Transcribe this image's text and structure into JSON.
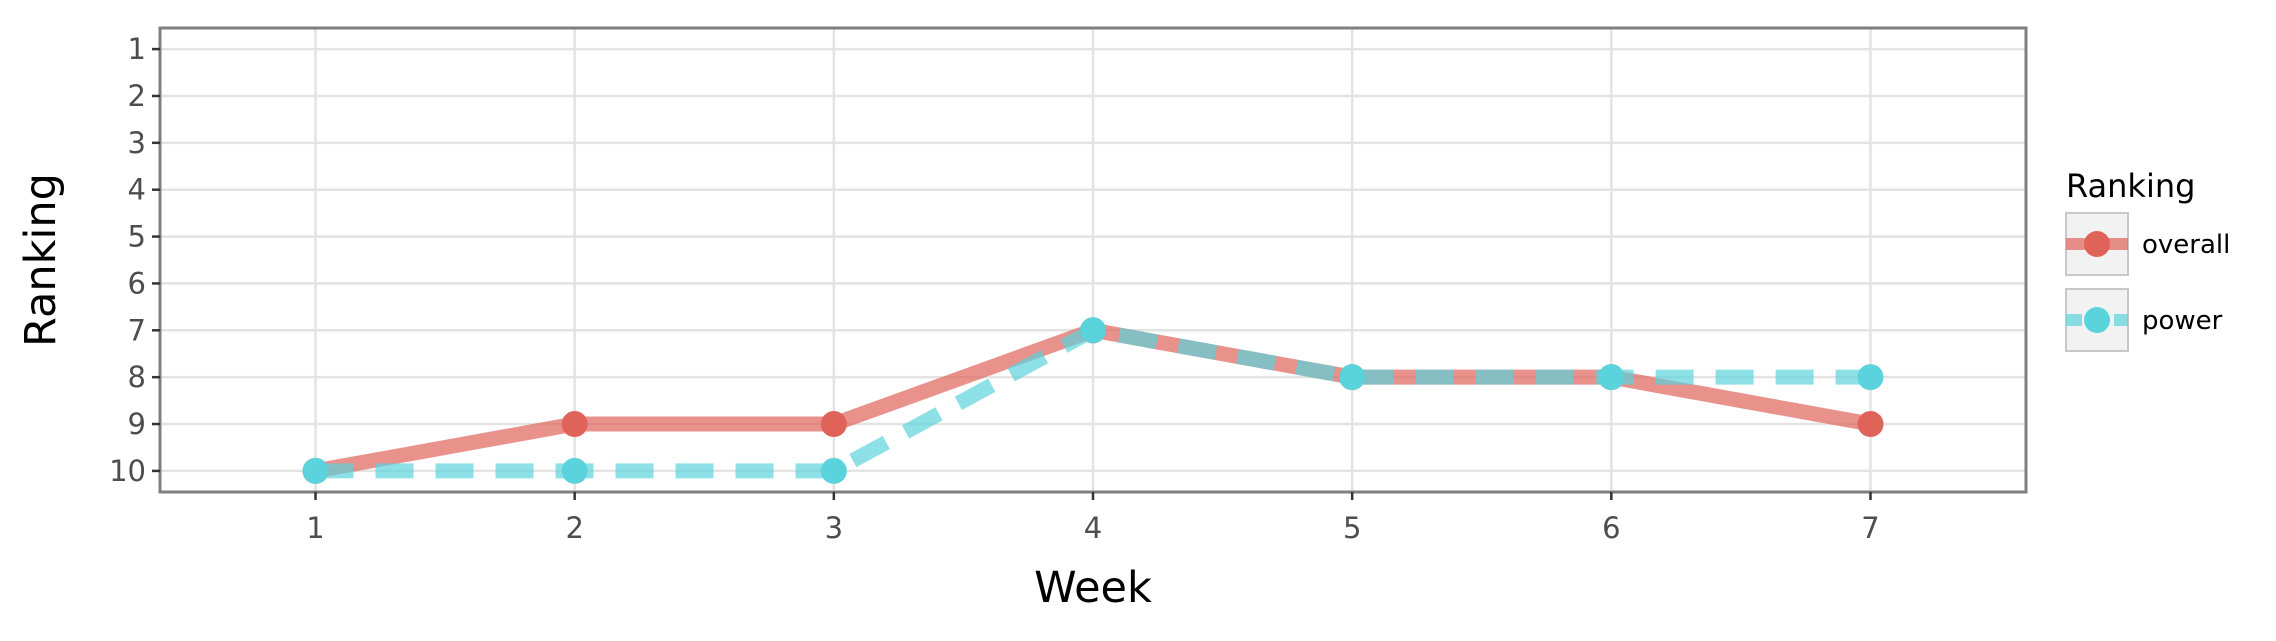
{
  "chart_data": {
    "type": "line",
    "xlabel": "Week",
    "ylabel": "Ranking",
    "x": [
      1,
      2,
      3,
      4,
      5,
      6,
      7
    ],
    "xlim": [
      0.4,
      7.6
    ],
    "ylim": [
      10.45,
      0.55
    ],
    "y_reversed": true,
    "x_ticks": [
      1,
      2,
      3,
      4,
      5,
      6,
      7
    ],
    "y_ticks": [
      1,
      2,
      3,
      4,
      5,
      6,
      7,
      8,
      9,
      10
    ],
    "grid": true,
    "legend": {
      "title": "Ranking",
      "placement": "right"
    },
    "series": [
      {
        "name": "overall",
        "values": [
          10,
          9,
          9,
          7,
          8,
          8,
          9
        ],
        "color": "#E0635A",
        "line_style": "solid"
      },
      {
        "name": "power",
        "values": [
          10,
          10,
          10,
          7,
          8,
          8,
          8
        ],
        "color": "#5BD3DC",
        "line_style": "dashed"
      }
    ]
  }
}
